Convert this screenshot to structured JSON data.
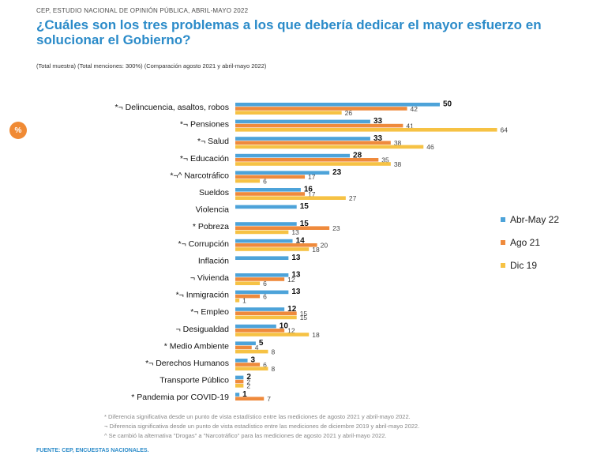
{
  "header": {
    "supertitle": "CEP, ESTUDIO NACIONAL DE OPINIÓN PÚBLICA, ABRIL-MAYO 2022",
    "title": "¿Cuáles son los tres problemas a los que debería dedicar el mayor esfuerzo en solucionar el Gobierno?",
    "subtitle": "(Total muestra) (Total menciones: 300%) (Comparación agosto 2021 y abril-mayo 2022)",
    "badge": "%"
  },
  "colors": {
    "s1": "#4da3d9",
    "s2": "#ef8a3c",
    "s3": "#f6c244"
  },
  "chart_data": {
    "type": "bar",
    "orientation": "horizontal",
    "title": "¿Cuáles son los tres problemas a los que debería dedicar el mayor esfuerzo en solucionar el Gobierno?",
    "categories": [
      "Delincuencia, asaltos, robos",
      "Pensiones",
      "Salud",
      "Educación",
      "Narcotráfico",
      "Sueldos",
      "Violencia",
      "Pobreza",
      "Corrupción",
      "Inflación",
      "Vivienda",
      "Inmigración",
      "Empleo",
      "Desigualdad",
      "Medio Ambiente",
      "Derechos Humanos",
      "Transporte Público",
      "Pandemia por COVID-19"
    ],
    "markers": [
      "*¬",
      "*¬",
      "*¬",
      "*¬",
      "*¬^",
      "",
      "",
      "*",
      "*¬",
      "",
      "¬",
      "*¬",
      "*¬",
      "¬",
      "*",
      "*¬",
      "",
      "*"
    ],
    "series": [
      {
        "name": "Abr-May 22",
        "values": [
          50,
          33,
          33,
          28,
          23,
          16,
          15,
          15,
          14,
          13,
          13,
          13,
          12,
          10,
          5,
          3,
          2,
          1
        ]
      },
      {
        "name": "Ago 21",
        "values": [
          42,
          41,
          38,
          35,
          17,
          17,
          null,
          23,
          20,
          null,
          12,
          6,
          15,
          12,
          4,
          6,
          2,
          7
        ]
      },
      {
        "name": "Dic 19",
        "values": [
          26,
          64,
          46,
          38,
          6,
          27,
          null,
          13,
          18,
          null,
          6,
          1,
          15,
          18,
          8,
          8,
          2,
          null
        ]
      }
    ],
    "xlim": [
      0,
      70
    ],
    "legend": "right"
  },
  "footnotes": [
    "* Diferencia significativa desde un punto de vista estadístico entre las mediciones de agosto 2021 y abril-mayo 2022.",
    "¬ Diferencia significativa desde un punto de vista estadístico entre las mediciones de diciembre 2019 y abril-mayo 2022.",
    "^ Se cambió la alternativa \"Drogas\" a \"Narcotráfico\" para las mediciones de agosto 2021 y abril-mayo 2022."
  ],
  "source": "FUENTE: CEP, ENCUESTAS NACIONALES."
}
